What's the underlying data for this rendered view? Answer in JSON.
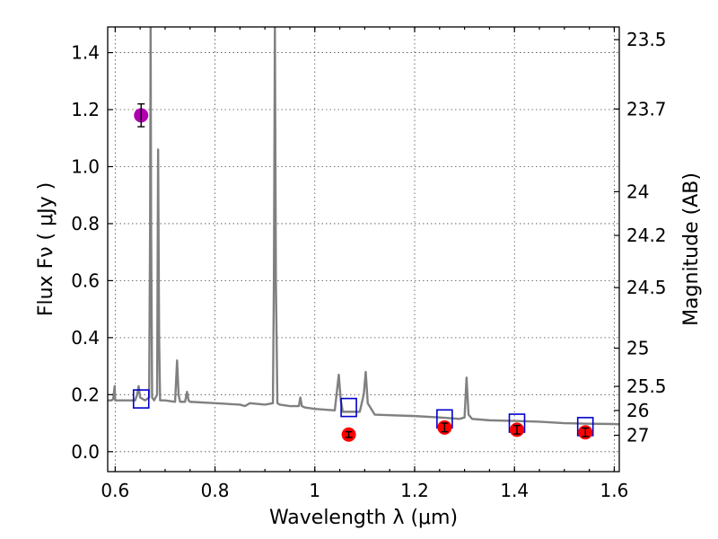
{
  "chart_data": {
    "type": "line",
    "xlabel": "Wavelength  λ (μm)",
    "ylabel": "Flux  Fν  ( μJy )",
    "y2label": "Magnitude (AB)",
    "xlim": [
      0.585,
      1.61
    ],
    "ylim": [
      -0.07,
      1.49
    ],
    "grid": true,
    "x_ticks": [
      0.6,
      0.8,
      1.0,
      1.2,
      1.4,
      1.6
    ],
    "x_tick_labels": [
      "0.6",
      "0.8",
      "1",
      "1.2",
      "1.4",
      "1.6"
    ],
    "y_ticks": [
      0.0,
      0.2,
      0.4,
      0.6,
      0.8,
      1.0,
      1.2,
      1.4
    ],
    "y_tick_labels": [
      "0.0",
      "0.2",
      "0.4",
      "0.6",
      "0.8",
      "1.0",
      "1.2",
      "1.4"
    ],
    "right_ticks": [
      {
        "label": "23.5",
        "mag": 23.5
      },
      {
        "label": "23.7",
        "mag": 23.7
      },
      {
        "label": "24",
        "mag": 24.0
      },
      {
        "label": "24.2",
        "mag": 24.2
      },
      {
        "label": "24.5",
        "mag": 24.5
      },
      {
        "label": "25",
        "mag": 25.0
      },
      {
        "label": "25.5",
        "mag": 25.5
      },
      {
        "label": "26",
        "mag": 26.0
      },
      {
        "label": "27",
        "mag": 27.0
      }
    ],
    "colors": {
      "spectrum": "#808080",
      "model_box": "#0000cc",
      "observed": "#ff0000",
      "observed_magenta": "#b000b0",
      "errorbar": "#000000"
    },
    "spectrum": {
      "x": [
        0.585,
        0.593,
        0.596,
        0.599,
        0.6,
        0.61,
        0.63,
        0.64,
        0.644,
        0.647,
        0.65,
        0.66,
        0.668,
        0.67,
        0.671,
        0.672,
        0.674,
        0.678,
        0.684,
        0.686,
        0.688,
        0.69,
        0.7,
        0.72,
        0.724,
        0.727,
        0.73,
        0.74,
        0.744,
        0.747,
        0.75,
        0.8,
        0.85,
        0.86,
        0.87,
        0.9,
        0.916,
        0.918,
        0.92,
        0.922,
        0.925,
        0.93,
        0.95,
        0.96,
        0.968,
        0.971,
        0.974,
        0.98,
        1.0,
        1.04,
        1.048,
        1.052,
        1.056,
        1.06,
        1.09,
        1.098,
        1.102,
        1.106,
        1.12,
        1.15,
        1.2,
        1.25,
        1.29,
        1.3,
        1.304,
        1.308,
        1.315,
        1.35,
        1.4,
        1.45,
        1.5,
        1.55,
        1.6,
        1.61
      ],
      "y": [
        0.18,
        0.18,
        0.185,
        0.23,
        0.18,
        0.18,
        0.18,
        0.18,
        0.2,
        0.23,
        0.19,
        0.18,
        0.19,
        0.8,
        1.49,
        0.8,
        0.19,
        0.18,
        0.2,
        1.06,
        0.4,
        0.18,
        0.18,
        0.175,
        0.32,
        0.2,
        0.175,
        0.175,
        0.21,
        0.18,
        0.175,
        0.17,
        0.165,
        0.16,
        0.17,
        0.165,
        0.17,
        0.6,
        1.49,
        0.6,
        0.17,
        0.165,
        0.16,
        0.16,
        0.16,
        0.19,
        0.16,
        0.155,
        0.15,
        0.145,
        0.27,
        0.18,
        0.14,
        0.14,
        0.14,
        0.2,
        0.28,
        0.17,
        0.13,
        0.128,
        0.125,
        0.12,
        0.115,
        0.12,
        0.26,
        0.13,
        0.115,
        0.11,
        0.108,
        0.105,
        0.1,
        0.098,
        0.097,
        0.096
      ]
    },
    "model_boxes": [
      {
        "x": 0.652,
        "y": 0.185
      },
      {
        "x": 1.068,
        "y": 0.155
      },
      {
        "x": 1.26,
        "y": 0.115
      },
      {
        "x": 1.405,
        "y": 0.1
      },
      {
        "x": 1.542,
        "y": 0.088
      }
    ],
    "observed_points": [
      {
        "x": 0.652,
        "y": 1.18,
        "err": 0.04,
        "color": "magenta"
      },
      {
        "x": 1.068,
        "y": 0.06,
        "err": 0.01,
        "color": "red"
      },
      {
        "x": 1.26,
        "y": 0.085,
        "err": 0.015,
        "color": "red"
      },
      {
        "x": 1.405,
        "y": 0.077,
        "err": 0.015,
        "color": "red"
      },
      {
        "x": 1.542,
        "y": 0.068,
        "err": 0.015,
        "color": "red"
      }
    ]
  }
}
